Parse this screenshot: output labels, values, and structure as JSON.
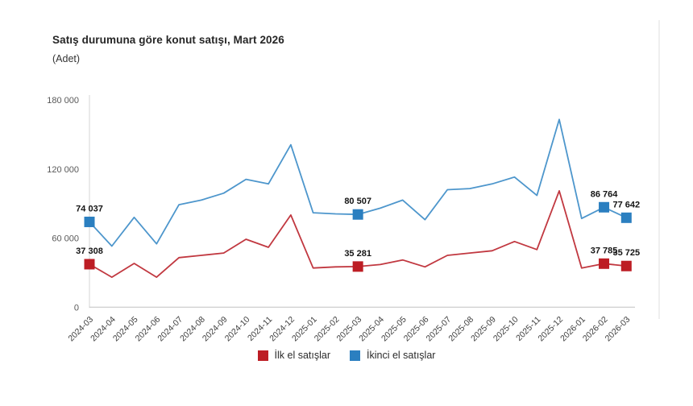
{
  "page": {
    "title": "Satış durumuna göre konut satışı, Mart 2026",
    "unit_label": "(Adet)"
  },
  "chart_data": {
    "type": "line",
    "title": "Satış durumuna göre konut satışı, Mart 2026",
    "unit": "(Adet)",
    "xlabel": "",
    "ylabel": "",
    "ylim": [
      0,
      180000
    ],
    "grid": false,
    "legend_position": "bottom",
    "categories": [
      "2024-03",
      "2024-04",
      "2024-05",
      "2024-06",
      "2024-07",
      "2024-08",
      "2024-09",
      "2024-10",
      "2024-11",
      "2024-12",
      "2025-01",
      "2025-02",
      "2025-03",
      "2025-04",
      "2025-05",
      "2025-06",
      "2025-07",
      "2025-08",
      "2025-09",
      "2025-10",
      "2025-11",
      "2025-12",
      "2026-01",
      "2026-02",
      "2026-03"
    ],
    "y_axis": {
      "max": 180000,
      "ticks": [
        {
          "value": 0,
          "label": "0"
        },
        {
          "value": 60000,
          "label": "60 000"
        },
        {
          "value": 120000,
          "label": "120 000"
        },
        {
          "value": 180000,
          "label": "180 000"
        }
      ]
    },
    "series": [
      {
        "name": "İlk el satışlar",
        "line_color": "#c13840",
        "marker_color": "#bd1d24",
        "values": [
          37308,
          26000,
          38000,
          26000,
          43000,
          45000,
          47000,
          59000,
          52000,
          80000,
          34000,
          35000,
          35281,
          37000,
          41000,
          35000,
          45000,
          47000,
          49000,
          57000,
          50000,
          101000,
          34000,
          37785,
          35725
        ],
        "labeled_points": [
          {
            "index": 0,
            "label": "37 308"
          },
          {
            "index": 12,
            "label": "35 281"
          },
          {
            "index": 23,
            "label": "37 785"
          },
          {
            "index": 24,
            "label": "35 725"
          }
        ]
      },
      {
        "name": "İkinci el satışlar",
        "line_color": "#4d96cc",
        "marker_color": "#2b7fc0",
        "values": [
          74037,
          53000,
          78000,
          55000,
          89000,
          93000,
          99000,
          111000,
          107000,
          141000,
          82000,
          81000,
          80507,
          86000,
          93000,
          76000,
          102000,
          103000,
          107000,
          113000,
          97000,
          163000,
          77000,
          86764,
          77642
        ],
        "labeled_points": [
          {
            "index": 0,
            "label": "74 037"
          },
          {
            "index": 12,
            "label": "80 507"
          },
          {
            "index": 23,
            "label": "86 764"
          },
          {
            "index": 24,
            "label": "77 642"
          }
        ]
      }
    ],
    "colors": {
      "axis_line": "#dedede",
      "baseline": "#c8c8c8",
      "right_border": "#e4e4e4",
      "tick_label": "#595959",
      "category_label": "#3d3d3d",
      "data_label": "#141414"
    }
  },
  "legend": {
    "items": [
      {
        "label": "İlk el satışlar",
        "color": "#bd1d24"
      },
      {
        "label": "İkinci el satışlar",
        "color": "#2b7fc0"
      }
    ]
  }
}
